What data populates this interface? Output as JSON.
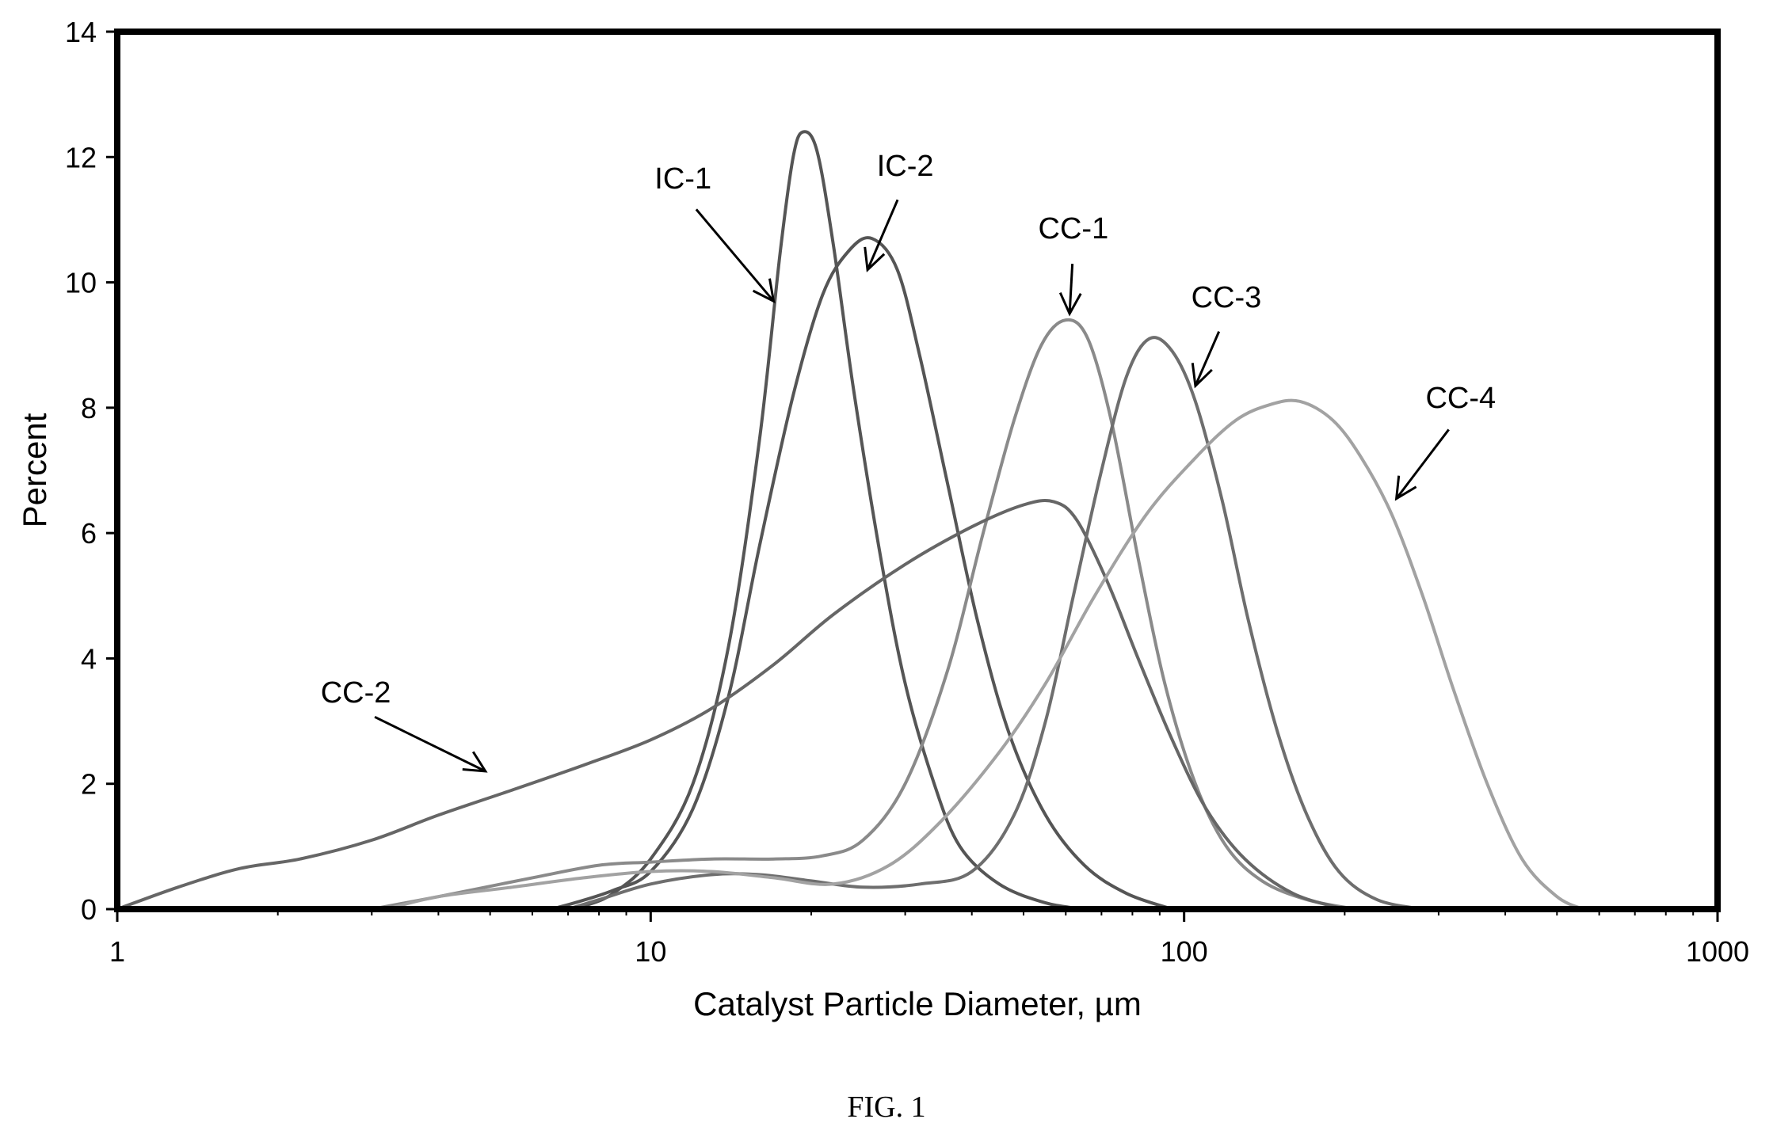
{
  "chart_data": {
    "type": "line",
    "xlabel": "Catalyst Particle Diameter, µm",
    "ylabel": "Percent",
    "xscale": "log",
    "xlim": [
      1,
      1000
    ],
    "ylim": [
      0,
      14
    ],
    "xticks": [
      {
        "value": 1,
        "label": "1"
      },
      {
        "value": 10,
        "label": "10"
      },
      {
        "value": 100,
        "label": "100"
      },
      {
        "value": 1000,
        "label": "1000"
      }
    ],
    "yticks": [
      {
        "value": 0,
        "label": "0"
      },
      {
        "value": 2,
        "label": "2"
      },
      {
        "value": 4,
        "label": "4"
      },
      {
        "value": 6,
        "label": "6"
      },
      {
        "value": 8,
        "label": "8"
      },
      {
        "value": 10,
        "label": "10"
      },
      {
        "value": 12,
        "label": "12"
      },
      {
        "value": 14,
        "label": "14"
      }
    ],
    "grid": false,
    "legend": "none",
    "series": [
      {
        "name": "IC-1",
        "color": "#555555",
        "label_at": [
          11.5,
          11.5
        ],
        "arrow_to": [
          17,
          9.7
        ],
        "points": [
          [
            7,
            0
          ],
          [
            7.5,
            0.05
          ],
          [
            8.5,
            0.25
          ],
          [
            10,
            0.8
          ],
          [
            12,
            2.0
          ],
          [
            14,
            4.2
          ],
          [
            16,
            7.5
          ],
          [
            17.5,
            10.5
          ],
          [
            18.5,
            12.0
          ],
          [
            19.3,
            12.4
          ],
          [
            20.5,
            12.1
          ],
          [
            22,
            10.6
          ],
          [
            24,
            8.3
          ],
          [
            27,
            5.6
          ],
          [
            30,
            3.6
          ],
          [
            34,
            2.0
          ],
          [
            38,
            1.0
          ],
          [
            45,
            0.4
          ],
          [
            55,
            0.1
          ],
          [
            65,
            0
          ]
        ]
      },
      {
        "name": "IC-2",
        "color": "#555555",
        "label_at": [
          30,
          11.7
        ],
        "arrow_to": [
          25.5,
          10.2
        ],
        "points": [
          [
            6.5,
            0
          ],
          [
            7.2,
            0.1
          ],
          [
            8.5,
            0.3
          ],
          [
            10,
            0.6
          ],
          [
            12,
            1.6
          ],
          [
            14,
            3.4
          ],
          [
            16,
            5.8
          ],
          [
            18.5,
            8.2
          ],
          [
            21,
            9.8
          ],
          [
            23.5,
            10.5
          ],
          [
            26,
            10.7
          ],
          [
            29,
            10.2
          ],
          [
            32,
            8.8
          ],
          [
            36,
            6.8
          ],
          [
            41,
            4.6
          ],
          [
            47,
            2.8
          ],
          [
            55,
            1.5
          ],
          [
            65,
            0.7
          ],
          [
            78,
            0.25
          ],
          [
            95,
            0
          ]
        ]
      },
      {
        "name": "CC-1",
        "color": "#8a8a8a",
        "label_at": [
          62,
          10.7
        ],
        "arrow_to": [
          61,
          9.5
        ],
        "points": [
          [
            3,
            0
          ],
          [
            4,
            0.2
          ],
          [
            6,
            0.5
          ],
          [
            8,
            0.7
          ],
          [
            10,
            0.75
          ],
          [
            13,
            0.8
          ],
          [
            17,
            0.8
          ],
          [
            21,
            0.85
          ],
          [
            25,
            1.1
          ],
          [
            30,
            2.0
          ],
          [
            36,
            3.8
          ],
          [
            42,
            6.0
          ],
          [
            48,
            7.8
          ],
          [
            54,
            9.0
          ],
          [
            60,
            9.4
          ],
          [
            66,
            9.1
          ],
          [
            73,
            7.8
          ],
          [
            82,
            5.6
          ],
          [
            92,
            3.6
          ],
          [
            105,
            2.0
          ],
          [
            120,
            1.0
          ],
          [
            140,
            0.45
          ],
          [
            170,
            0.15
          ],
          [
            210,
            0
          ]
        ]
      },
      {
        "name": "CC-2",
        "color": "#666666",
        "label_at": [
          2.8,
          3.3
        ],
        "arrow_to": [
          4.9,
          2.2
        ],
        "points": [
          [
            1,
            0
          ],
          [
            1.3,
            0.35
          ],
          [
            1.7,
            0.65
          ],
          [
            2.2,
            0.8
          ],
          [
            3,
            1.1
          ],
          [
            4,
            1.5
          ],
          [
            5.5,
            1.9
          ],
          [
            7.5,
            2.3
          ],
          [
            10,
            2.7
          ],
          [
            13,
            3.2
          ],
          [
            17,
            3.9
          ],
          [
            22,
            4.7
          ],
          [
            30,
            5.5
          ],
          [
            40,
            6.1
          ],
          [
            50,
            6.45
          ],
          [
            57,
            6.5
          ],
          [
            63,
            6.2
          ],
          [
            72,
            5.2
          ],
          [
            82,
            4.0
          ],
          [
            95,
            2.7
          ],
          [
            110,
            1.6
          ],
          [
            130,
            0.8
          ],
          [
            160,
            0.25
          ],
          [
            200,
            0
          ]
        ]
      },
      {
        "name": "CC-3",
        "color": "#6e6e6e",
        "label_at": [
          120,
          9.6
        ],
        "arrow_to": [
          105,
          8.35
        ],
        "points": [
          [
            7,
            0
          ],
          [
            8,
            0.15
          ],
          [
            10,
            0.4
          ],
          [
            13,
            0.55
          ],
          [
            16,
            0.55
          ],
          [
            20,
            0.45
          ],
          [
            25,
            0.35
          ],
          [
            32,
            0.4
          ],
          [
            40,
            0.6
          ],
          [
            48,
            1.5
          ],
          [
            55,
            3.0
          ],
          [
            62,
            5.0
          ],
          [
            70,
            7.0
          ],
          [
            78,
            8.5
          ],
          [
            86,
            9.1
          ],
          [
            95,
            8.9
          ],
          [
            105,
            8.1
          ],
          [
            118,
            6.5
          ],
          [
            132,
            4.6
          ],
          [
            150,
            2.8
          ],
          [
            170,
            1.5
          ],
          [
            195,
            0.6
          ],
          [
            230,
            0.15
          ],
          [
            280,
            0
          ]
        ]
      },
      {
        "name": "CC-4",
        "color": "#a2a2a2",
        "label_at": [
          330,
          8.0
        ],
        "arrow_to": [
          250,
          6.55
        ],
        "points": [
          [
            3.2,
            0
          ],
          [
            4,
            0.2
          ],
          [
            5.5,
            0.35
          ],
          [
            7.5,
            0.5
          ],
          [
            10,
            0.6
          ],
          [
            13,
            0.6
          ],
          [
            17,
            0.5
          ],
          [
            22,
            0.4
          ],
          [
            28,
            0.7
          ],
          [
            35,
            1.4
          ],
          [
            45,
            2.5
          ],
          [
            55,
            3.6
          ],
          [
            68,
            5.0
          ],
          [
            85,
            6.3
          ],
          [
            105,
            7.2
          ],
          [
            125,
            7.8
          ],
          [
            145,
            8.05
          ],
          [
            165,
            8.1
          ],
          [
            190,
            7.8
          ],
          [
            215,
            7.2
          ],
          [
            245,
            6.3
          ],
          [
            280,
            5.0
          ],
          [
            320,
            3.5
          ],
          [
            370,
            2.0
          ],
          [
            430,
            0.8
          ],
          [
            500,
            0.2
          ],
          [
            560,
            0
          ]
        ]
      }
    ]
  },
  "caption": "FIG. 1"
}
